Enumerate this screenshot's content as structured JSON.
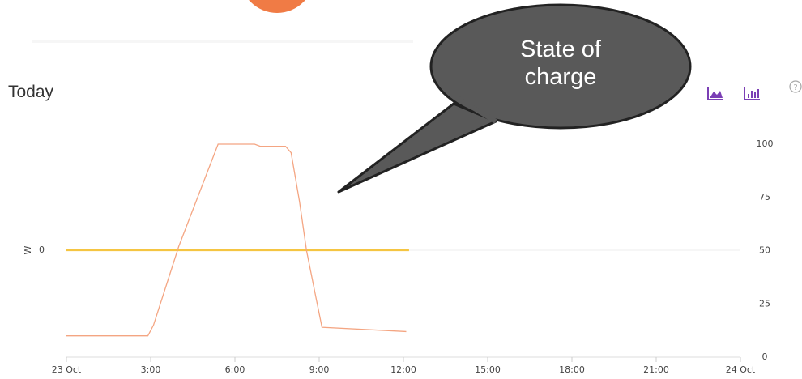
{
  "header": {
    "title": "Today"
  },
  "chart_data": {
    "type": "line",
    "annotation": "State of charge",
    "ylabel": "W",
    "xlim": [
      0,
      24
    ],
    "xticks": [
      {
        "value": 0,
        "label": "23 Oct"
      },
      {
        "value": 3,
        "label": "3:00"
      },
      {
        "value": 6,
        "label": "6:00"
      },
      {
        "value": 9,
        "label": "9:00"
      },
      {
        "value": 12,
        "label": "12:00"
      },
      {
        "value": 15,
        "label": "15:00"
      },
      {
        "value": 18,
        "label": "18:00"
      },
      {
        "value": 21,
        "label": "21:00"
      },
      {
        "value": 24,
        "label": "24 Oct"
      }
    ],
    "ylim": [
      -1,
      1
    ],
    "yticks": [
      0
    ],
    "y2lim": [
      0,
      100
    ],
    "y2ticks": [
      0,
      25,
      50,
      75,
      100
    ],
    "grid": true,
    "series": [
      {
        "color": "#f5c542",
        "x": [
          0,
          12.2
        ],
        "values": [
          0,
          0
        ]
      },
      {
        "color": "#f4a582",
        "axis": "y2",
        "x": [
          0,
          2.9,
          3.1,
          4,
          5.4,
          6.7,
          6.9,
          7.8,
          8.0,
          8.3,
          8.55,
          8.9,
          9.1,
          12.1
        ],
        "values": [
          10,
          10,
          15,
          52,
          100,
          100,
          99,
          99,
          96,
          73,
          50,
          27,
          14,
          12
        ]
      }
    ]
  }
}
